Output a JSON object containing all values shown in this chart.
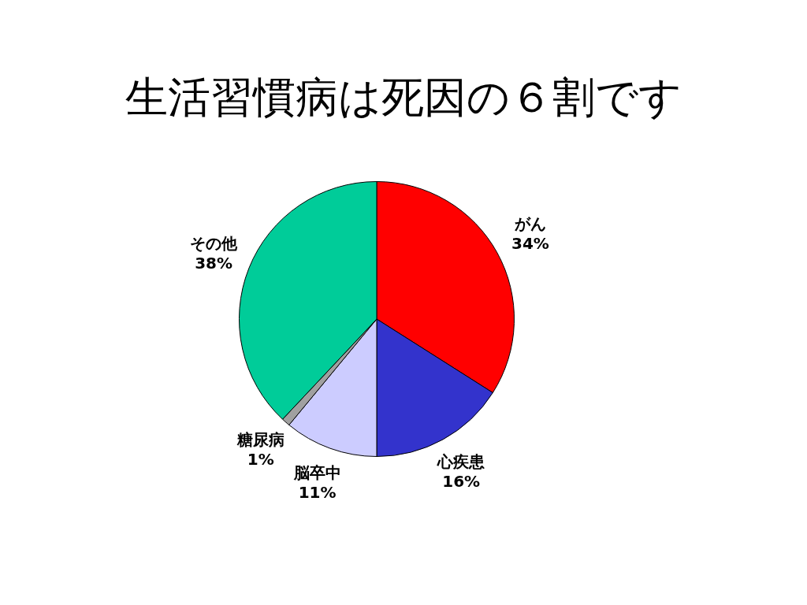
{
  "chart_data": {
    "type": "pie",
    "title": "生活習慣病は死因の６割です",
    "categories": [
      "がん",
      "心疾患",
      "脳卒中",
      "糖尿病",
      "その他"
    ],
    "values": [
      34,
      16,
      11,
      1,
      38
    ],
    "colors": [
      "#ff0000",
      "#3333cc",
      "#ccccff",
      "#a0a0a0",
      "#00cc99"
    ],
    "value_labels": [
      "34%",
      "16%",
      "11%",
      "1%",
      "38%"
    ]
  }
}
